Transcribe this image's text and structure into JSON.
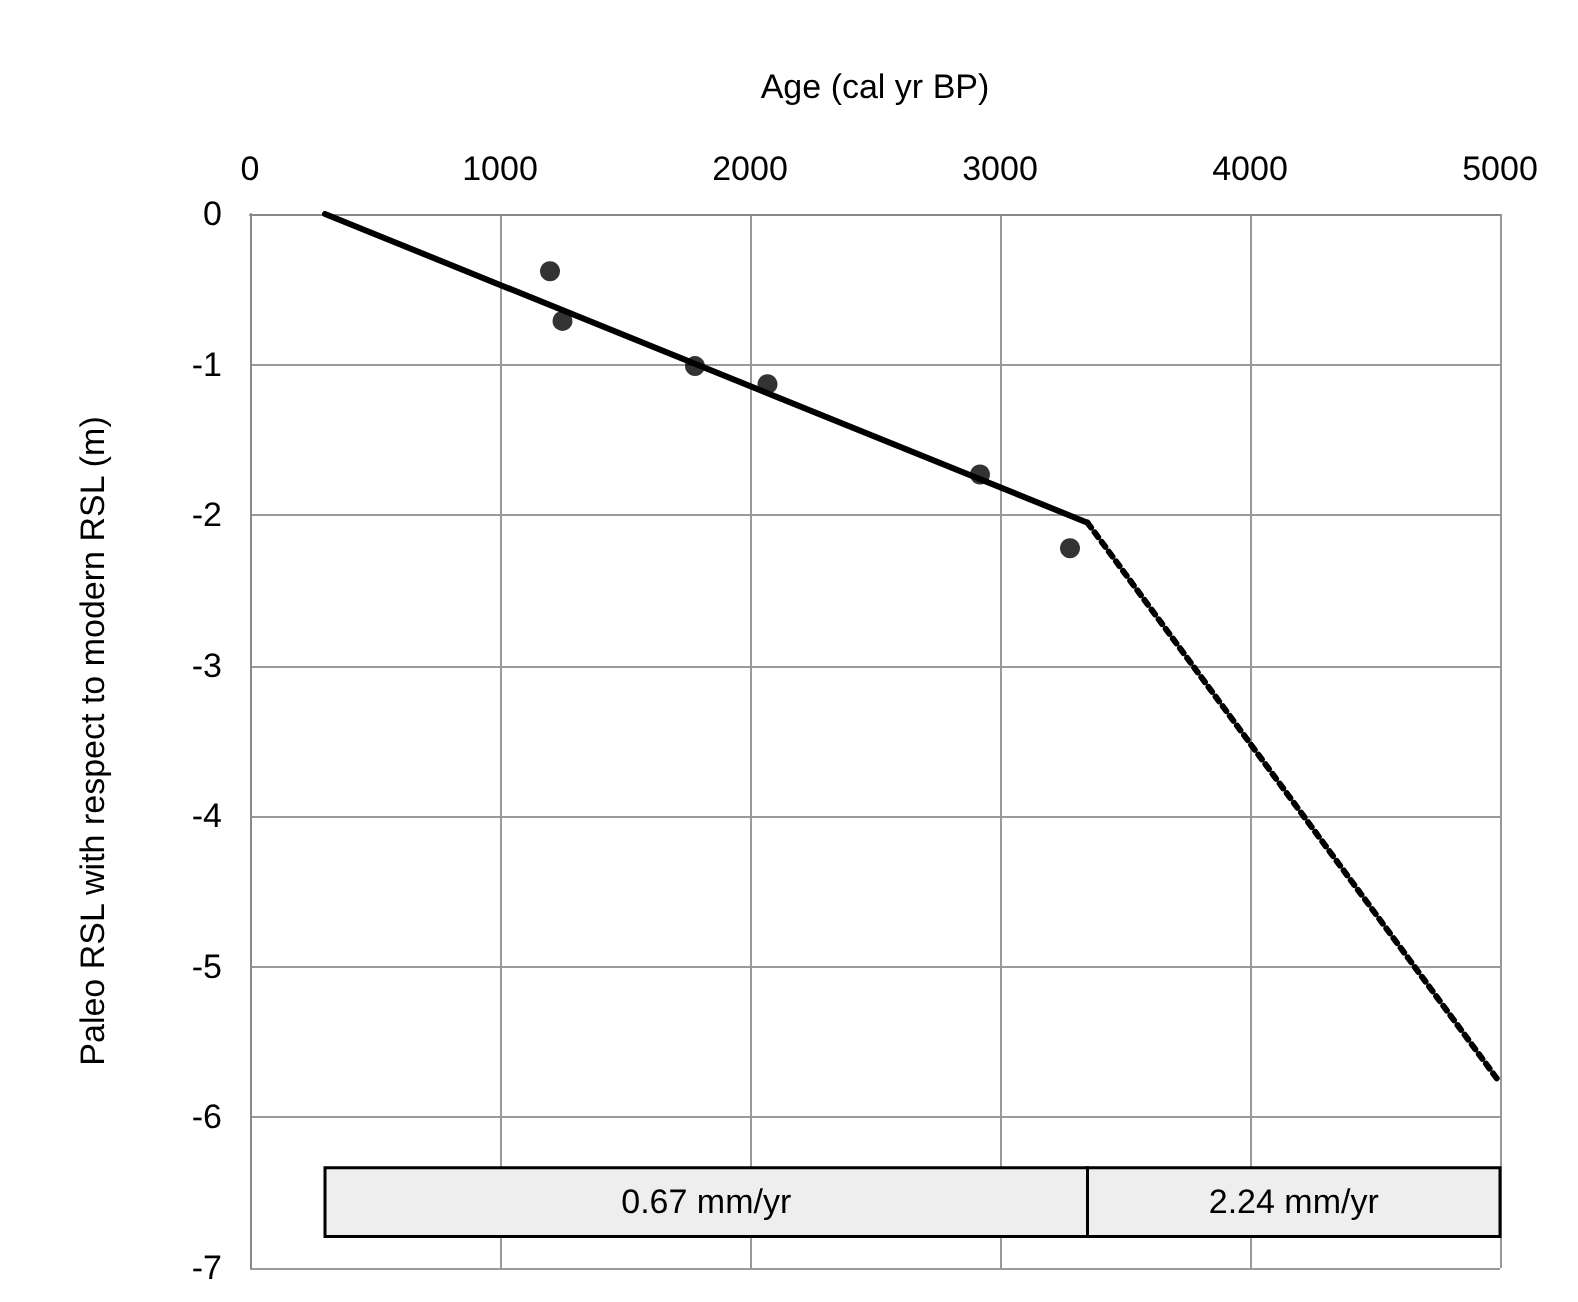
{
  "chart_data": {
    "type": "line",
    "xlabel": "Age (cal yr BP)",
    "ylabel": "Paleo RSL with respect to modern RSL (m)",
    "xlim": [
      0,
      5000
    ],
    "xticks": [
      0,
      1000,
      2000,
      3000,
      4000,
      5000
    ],
    "ylim": [
      -7,
      0
    ],
    "yticks": [
      0,
      -1,
      -2,
      -3,
      -4,
      -5,
      -6,
      -7
    ],
    "grid": true,
    "series": [
      {
        "type": "scatter",
        "color": "#000000",
        "marker": "circle",
        "x": [
          1200,
          1250,
          1780,
          2070,
          2920,
          3280
        ],
        "values": [
          -0.38,
          -0.71,
          -1.01,
          -1.13,
          -1.73,
          -2.22
        ]
      },
      {
        "type": "line",
        "color": "#000000",
        "marker": "none",
        "line_style": "solid",
        "x": [
          300,
          3350
        ],
        "values": [
          0,
          -2.05
        ]
      },
      {
        "type": "line",
        "color": "#000000",
        "marker": "none",
        "line_style": "dotted",
        "x": [
          3350,
          5000
        ],
        "values": [
          -2.05,
          -5.77
        ]
      }
    ],
    "bands": [
      {
        "axis": "x",
        "from": 300,
        "to": 3350,
        "label": "0.67 mm/yr",
        "color": "#eeeeee"
      },
      {
        "axis": "x",
        "from": 3350,
        "to": 5000,
        "label": "2.24 mm/yr",
        "color": "#eeeeee"
      }
    ]
  }
}
